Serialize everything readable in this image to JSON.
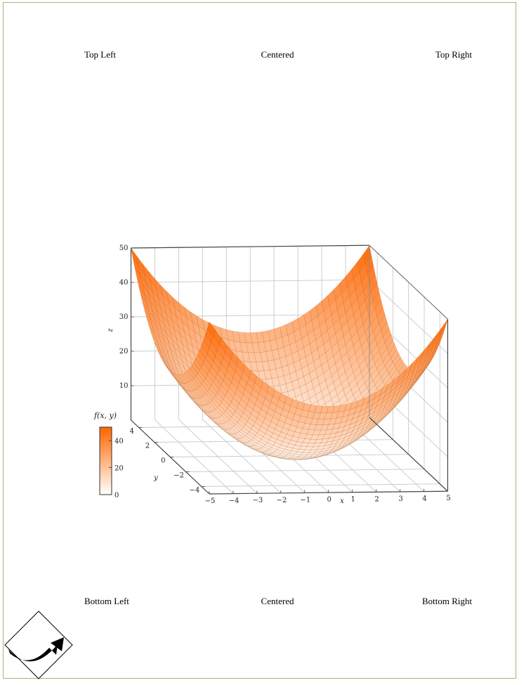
{
  "header": {
    "left": "Top Left",
    "center": "Centered",
    "right": "Top Right"
  },
  "footer": {
    "left": "Bottom Left",
    "center": "Centered",
    "right": "Bottom Right"
  },
  "corner_icon": "curved-arrow-diamond-icon",
  "chart_data": {
    "type": "surface",
    "function": "f(x,y) = x^2 + y^2",
    "xlabel": "x",
    "ylabel": "y",
    "zlabel": "z",
    "xlim": [
      -5,
      5
    ],
    "ylim": [
      -5,
      5
    ],
    "zlim": [
      0,
      50
    ],
    "x_ticks": [
      -5,
      -4,
      -3,
      -2,
      -1,
      0,
      1,
      2,
      3,
      4,
      5
    ],
    "y_ticks": [
      -4,
      -2,
      0,
      2,
      4
    ],
    "z_ticks": [
      10,
      20,
      30,
      40,
      50
    ],
    "grid": true,
    "colorbar": {
      "title": "f(x, y)",
      "ticks": [
        0,
        20,
        40
      ],
      "range": [
        0,
        50
      ],
      "colors": [
        "#ffffff",
        "#ff6600"
      ],
      "placement": "left"
    },
    "surface_color": "#ff6600"
  }
}
